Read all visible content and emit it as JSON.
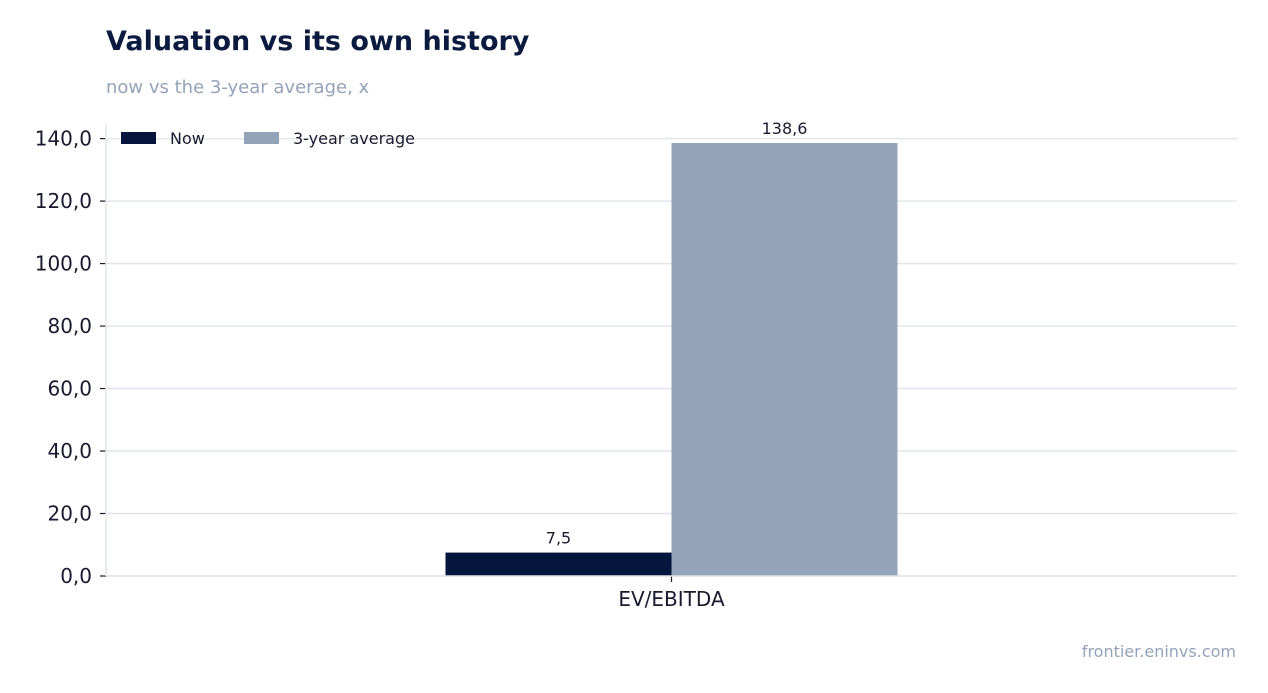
{
  "header": {
    "title": "Valuation vs its own history",
    "subtitle": "now vs the 3-year average, x"
  },
  "footer": {
    "source": "frontier.eninvs.com"
  },
  "colors": {
    "now": "#06153e",
    "avg": "#93a3b8",
    "grid": "#e2e6ea",
    "axis": "#1a1a2e"
  },
  "chart_data": {
    "type": "bar",
    "title": "Valuation vs its own history",
    "subtitle": "now vs the 3-year average, x",
    "categories": [
      "EV/EBITDA"
    ],
    "series": [
      {
        "name": "Now",
        "values": [
          7.5
        ],
        "labels": [
          "7,5"
        ]
      },
      {
        "name": "3-year average",
        "values": [
          138.6
        ],
        "labels": [
          "138,6"
        ]
      }
    ],
    "ylim": [
      0,
      145
    ],
    "yticks": [
      0,
      20,
      40,
      60,
      80,
      100,
      120,
      140
    ],
    "ytick_labels": [
      "0,0",
      "20,0",
      "40,0",
      "60,0",
      "80,0",
      "100,0",
      "120,0",
      "140,0"
    ],
    "grid": true,
    "legend_position": "top-left"
  }
}
